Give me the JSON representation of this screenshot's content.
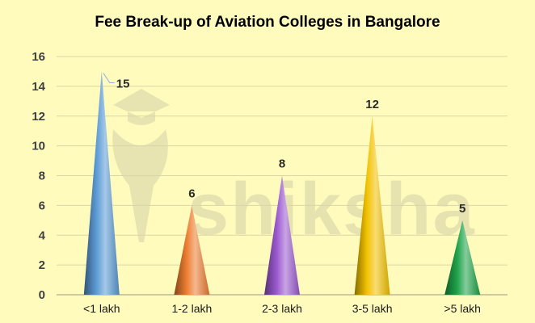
{
  "chart_data": {
    "type": "bar",
    "title": "Fee Break-up of Aviation Colleges in Bangalore",
    "xlabel": "",
    "ylabel": "",
    "categories": [
      "<1 lakh",
      "1-2 lakh",
      "2-3 lakh",
      "3-5 lakh",
      ">5 lakh"
    ],
    "values": [
      15,
      6,
      8,
      12,
      5
    ],
    "ylim": [
      0,
      16
    ],
    "yticks": [
      0,
      2,
      4,
      6,
      8,
      10,
      12,
      14,
      16
    ],
    "grid": true,
    "bar_shape": "cone",
    "colors": [
      "#5b9bd5",
      "#ed7d31",
      "#9b59d0",
      "#f2c200",
      "#1fa34a"
    ]
  },
  "watermark": {
    "text": "shiksha"
  }
}
